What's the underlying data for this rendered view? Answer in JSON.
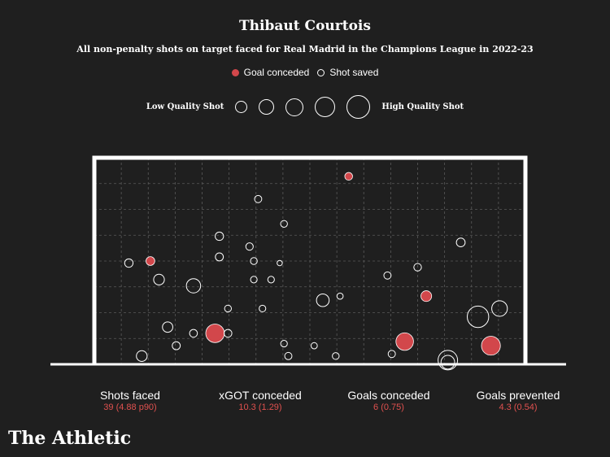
{
  "header": {
    "title": "Thibaut Courtois",
    "subtitle": "All non-penalty shots on target faced for Real Madrid in the Champions League in 2022-23"
  },
  "legend": {
    "goal_label": "Goal conceded",
    "saved_label": "Shot saved",
    "low_quality_label": "Low Quality Shot",
    "high_quality_label": "High Quality Shot"
  },
  "colors": {
    "background": "#1f1f1f",
    "goal": "#d2474b",
    "saved": "#ffffff",
    "stat_value": "#e0514f"
  },
  "stats": [
    {
      "label": "Shots faced",
      "value": "39 (4.88 p90)"
    },
    {
      "label": "xGOT conceded",
      "value": "10.3 (1.29)"
    },
    {
      "label": "Goals conceded",
      "value": "6 (0.75)"
    },
    {
      "label": "Goals prevented",
      "value": "4.3 (0.54)"
    }
  ],
  "brand": "The Athletic",
  "chart_data": {
    "type": "scatter",
    "title": "Thibaut Courtois",
    "subtitle": "All non-penalty shots on target faced for Real Madrid in the Champions League in 2022-23",
    "xlabel": "",
    "ylabel": "",
    "xlim": [
      0,
      1
    ],
    "ylim": [
      0,
      1
    ],
    "grid": true,
    "size_encoding": "xGOT",
    "series": [
      {
        "name": "Goal conceded",
        "points": [
          {
            "x": 0.59,
            "y": 0.91,
            "size": 0.15
          },
          {
            "x": 0.13,
            "y": 0.5,
            "size": 0.2
          },
          {
            "x": 0.77,
            "y": 0.33,
            "size": 0.3
          },
          {
            "x": 0.28,
            "y": 0.15,
            "size": 0.7
          },
          {
            "x": 0.72,
            "y": 0.11,
            "size": 0.65
          },
          {
            "x": 0.92,
            "y": 0.09,
            "size": 0.72
          }
        ]
      },
      {
        "name": "Shot saved",
        "points": [
          {
            "x": 0.38,
            "y": 0.8,
            "size": 0.12
          },
          {
            "x": 0.44,
            "y": 0.68,
            "size": 0.1
          },
          {
            "x": 0.29,
            "y": 0.62,
            "size": 0.18
          },
          {
            "x": 0.36,
            "y": 0.57,
            "size": 0.13
          },
          {
            "x": 0.29,
            "y": 0.52,
            "size": 0.16
          },
          {
            "x": 0.37,
            "y": 0.5,
            "size": 0.1
          },
          {
            "x": 0.08,
            "y": 0.49,
            "size": 0.18
          },
          {
            "x": 0.15,
            "y": 0.41,
            "size": 0.3
          },
          {
            "x": 0.23,
            "y": 0.38,
            "size": 0.48
          },
          {
            "x": 0.37,
            "y": 0.41,
            "size": 0.09
          },
          {
            "x": 0.41,
            "y": 0.41,
            "size": 0.09
          },
          {
            "x": 0.68,
            "y": 0.43,
            "size": 0.12
          },
          {
            "x": 0.75,
            "y": 0.47,
            "size": 0.14
          },
          {
            "x": 0.85,
            "y": 0.59,
            "size": 0.2
          },
          {
            "x": 0.53,
            "y": 0.31,
            "size": 0.4
          },
          {
            "x": 0.57,
            "y": 0.33,
            "size": 0.07
          },
          {
            "x": 0.31,
            "y": 0.27,
            "size": 0.1
          },
          {
            "x": 0.39,
            "y": 0.27,
            "size": 0.09
          },
          {
            "x": 0.17,
            "y": 0.18,
            "size": 0.28
          },
          {
            "x": 0.23,
            "y": 0.15,
            "size": 0.15
          },
          {
            "x": 0.31,
            "y": 0.15,
            "size": 0.15
          },
          {
            "x": 0.19,
            "y": 0.09,
            "size": 0.16
          },
          {
            "x": 0.44,
            "y": 0.1,
            "size": 0.09
          },
          {
            "x": 0.51,
            "y": 0.09,
            "size": 0.07
          },
          {
            "x": 0.11,
            "y": 0.04,
            "size": 0.3
          },
          {
            "x": 0.45,
            "y": 0.04,
            "size": 0.12
          },
          {
            "x": 0.56,
            "y": 0.04,
            "size": 0.1
          },
          {
            "x": 0.69,
            "y": 0.05,
            "size": 0.12
          },
          {
            "x": 0.82,
            "y": 0.02,
            "size": 0.75
          },
          {
            "x": 0.82,
            "y": 0.01,
            "size": 0.45
          },
          {
            "x": 0.89,
            "y": 0.23,
            "size": 0.85
          },
          {
            "x": 0.94,
            "y": 0.27,
            "size": 0.55
          },
          {
            "x": 0.43,
            "y": 0.49,
            "size": 0.02
          }
        ]
      }
    ]
  }
}
